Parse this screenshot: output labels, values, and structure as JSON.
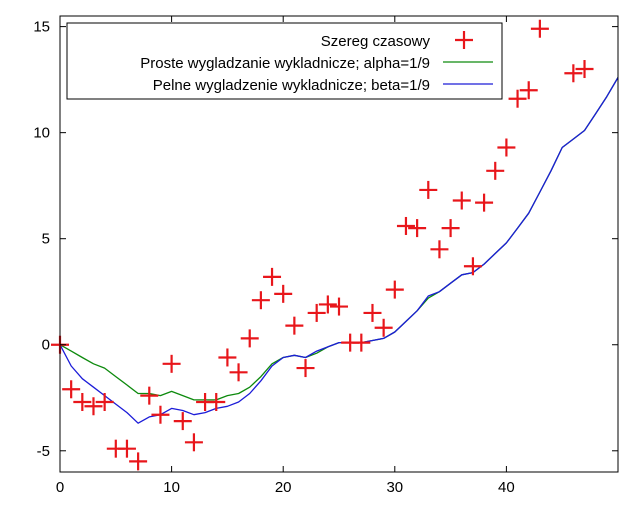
{
  "chart_data": {
    "type": "line",
    "title": "",
    "xlabel": "",
    "ylabel": "",
    "xlim": [
      0,
      50
    ],
    "ylim": [
      -6,
      15.5
    ],
    "grid": false,
    "legend_position": "top",
    "x_ticks": [
      0,
      10,
      20,
      30,
      40
    ],
    "y_ticks": [
      -5,
      0,
      5,
      10,
      15
    ],
    "x_tick_labels": [
      "0",
      "10",
      "20",
      "30",
      "40"
    ],
    "y_tick_labels": [
      "-5",
      "0",
      "5",
      "10",
      "15"
    ],
    "series": [
      {
        "name": "Szereg czasowy",
        "style": "markers",
        "color": "#e8161b",
        "x": [
          0,
          1,
          2,
          3,
          4,
          5,
          6,
          7,
          8,
          9,
          10,
          11,
          12,
          13,
          14,
          15,
          16,
          17,
          18,
          19,
          20,
          21,
          22,
          23,
          24,
          25,
          26,
          27,
          28,
          29,
          30,
          31,
          32,
          33,
          34,
          35,
          36,
          37,
          38,
          39,
          40,
          41,
          42,
          43,
          46,
          47
        ],
        "values": [
          0,
          -2.1,
          -2.7,
          -2.9,
          -2.7,
          -4.9,
          -4.9,
          -5.5,
          -2.4,
          -3.3,
          -0.9,
          -3.6,
          -4.6,
          -2.7,
          -2.7,
          -0.6,
          -1.3,
          0.3,
          2.1,
          3.2,
          2.4,
          0.9,
          -1.1,
          1.5,
          1.9,
          1.8,
          0.1,
          0.1,
          1.5,
          0.8,
          2.6,
          5.6,
          5.5,
          7.3,
          4.5,
          5.5,
          6.8,
          3.7,
          6.7,
          8.2,
          9.3,
          11.6,
          12.0,
          14.9,
          12.8,
          13.0
        ]
      },
      {
        "name": "Proste wygladzanie wykladnicze; alpha=1/9",
        "style": "line",
        "color": "#0d8a0d",
        "x": [
          0,
          1,
          2,
          3,
          4,
          5,
          6,
          7,
          8,
          9,
          10,
          11,
          12,
          13,
          14,
          15,
          16,
          17,
          18,
          19,
          20,
          21,
          22,
          23,
          24,
          25,
          26,
          27,
          28,
          29,
          30,
          31,
          32,
          33,
          34,
          35,
          36,
          37,
          38,
          39,
          40,
          41,
          42,
          43,
          44,
          45,
          46,
          47,
          48,
          49,
          50
        ],
        "values": [
          0,
          -0.3,
          -0.6,
          -0.9,
          -1.1,
          -1.5,
          -1.9,
          -2.3,
          -2.3,
          -2.4,
          -2.2,
          -2.4,
          -2.6,
          -2.6,
          -2.6,
          -2.4,
          -2.3,
          -2.0,
          -1.5,
          -0.9,
          -0.6,
          -0.5,
          -0.6,
          -0.4,
          -0.1,
          0.1,
          0.1,
          0.1,
          0.2,
          0.3,
          0.6,
          1.1,
          1.6,
          2.2,
          2.5,
          2.9,
          3.3,
          3.4,
          3.8,
          4.3,
          4.8,
          5.5,
          6.2,
          7.2,
          8.2,
          9.3,
          9.7,
          10.1,
          10.9,
          11.7,
          12.6
        ]
      },
      {
        "name": "Pelne wygladzenie wykladnicze; beta=1/9",
        "style": "line",
        "color": "#1c1cd8",
        "x": [
          0,
          1,
          2,
          3,
          4,
          5,
          6,
          7,
          8,
          9,
          10,
          11,
          12,
          13,
          14,
          15,
          16,
          17,
          18,
          19,
          20,
          21,
          22,
          23,
          24,
          25,
          26,
          27,
          28,
          29,
          30,
          31,
          32,
          33,
          34,
          35,
          36,
          37,
          38,
          39,
          40,
          41,
          42,
          43,
          44,
          45,
          46,
          47,
          48,
          49,
          50
        ],
        "values": [
          0,
          -1.0,
          -1.6,
          -2.0,
          -2.4,
          -2.8,
          -3.2,
          -3.7,
          -3.4,
          -3.3,
          -3.0,
          -3.1,
          -3.3,
          -3.2,
          -3.0,
          -2.9,
          -2.7,
          -2.3,
          -1.7,
          -1.0,
          -0.6,
          -0.5,
          -0.6,
          -0.3,
          -0.1,
          0.1,
          0.1,
          0.1,
          0.2,
          0.3,
          0.6,
          1.1,
          1.6,
          2.3,
          2.5,
          2.9,
          3.3,
          3.4,
          3.8,
          4.3,
          4.8,
          5.5,
          6.2,
          7.2,
          8.2,
          9.3,
          9.7,
          10.1,
          10.9,
          11.7,
          12.6
        ]
      }
    ]
  },
  "colors": {
    "markers": "#e8161b",
    "simple_smoothing": "#0d8a0d",
    "full_smoothing": "#1c1cd8",
    "axis": "#000000",
    "background": "#ffffff"
  }
}
